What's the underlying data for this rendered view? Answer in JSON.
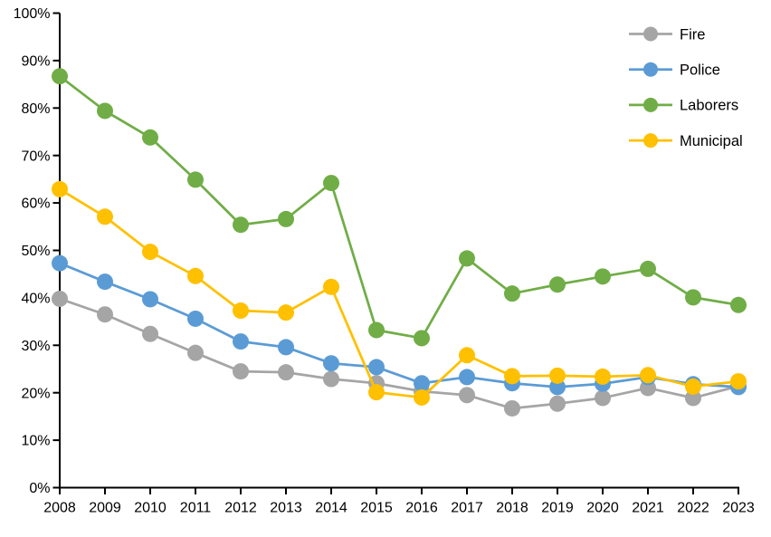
{
  "chart_data": {
    "type": "line",
    "title": "",
    "xlabel": "",
    "ylabel": "",
    "x": [
      2008,
      2009,
      2010,
      2011,
      2012,
      2013,
      2014,
      2015,
      2016,
      2017,
      2018,
      2019,
      2020,
      2021,
      2022,
      2023
    ],
    "series": [
      {
        "name": "Fire",
        "color": "#A5A5A5",
        "values": [
          39.8,
          36.5,
          32.4,
          28.4,
          24.5,
          24.3,
          22.9,
          22.0,
          20.3,
          19.5,
          16.7,
          17.7,
          18.9,
          21.0,
          18.9,
          21.4
        ]
      },
      {
        "name": "Police",
        "color": "#5B9BD5",
        "values": [
          47.3,
          43.4,
          39.7,
          35.6,
          30.8,
          29.6,
          26.2,
          25.4,
          22.0,
          23.3,
          22.0,
          21.2,
          21.9,
          23.3,
          21.8,
          21.2
        ]
      },
      {
        "name": "Laborers",
        "color": "#70AD47",
        "values": [
          86.7,
          79.4,
          73.8,
          64.9,
          55.4,
          56.6,
          64.2,
          33.2,
          31.5,
          48.3,
          40.9,
          42.8,
          44.5,
          46.1,
          40.1,
          38.5
        ]
      },
      {
        "name": "Municipal",
        "color": "#FFC000",
        "values": [
          62.9,
          57.1,
          49.7,
          44.6,
          37.3,
          36.9,
          42.3,
          20.1,
          19.0,
          27.9,
          23.5,
          23.6,
          23.4,
          23.7,
          21.3,
          22.4
        ]
      }
    ],
    "ylim": [
      0,
      100
    ],
    "ytick_step": 10,
    "ytick_suffix": "%",
    "ytick_labels": [
      "0%",
      "10%",
      "20%",
      "30%",
      "40%",
      "50%",
      "60%",
      "70%",
      "80%",
      "90%",
      "100%"
    ],
    "xtick_labels": [
      "2008",
      "2009",
      "2010",
      "2011",
      "2012",
      "2013",
      "2014",
      "2015",
      "2016",
      "2017",
      "2018",
      "2019",
      "2020",
      "2021",
      "2022",
      "2023"
    ],
    "grid": false,
    "legend_position": "top-right",
    "legend_items": [
      "Fire",
      "Police",
      "Laborers",
      "Municipal"
    ],
    "axis_color": "#000000",
    "background_color": "#FFFFFF"
  }
}
